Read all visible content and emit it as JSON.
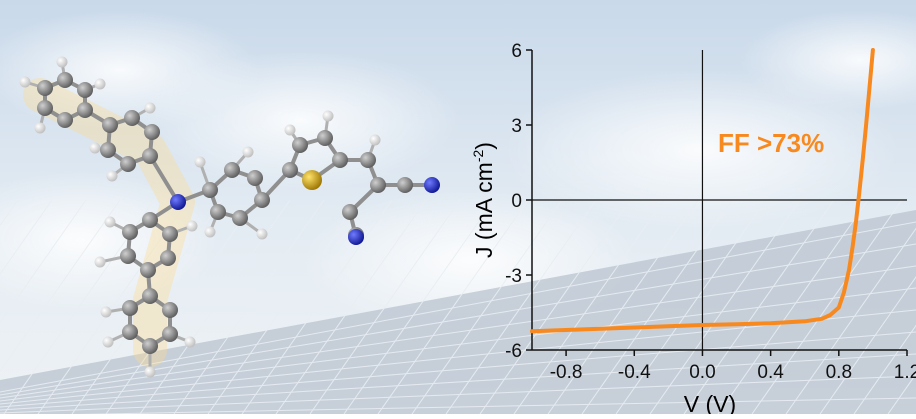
{
  "chart_data": {
    "type": "line",
    "xlabel": "V (V)",
    "ylabel_main": "J (mA cm",
    "ylabel_sup": "-2",
    "ylabel_close": ")",
    "xlim": [
      -1.0,
      1.2
    ],
    "ylim": [
      -6,
      6
    ],
    "xticks": [
      -0.8,
      -0.4,
      0.0,
      0.4,
      0.8,
      1.2
    ],
    "xtick_labels": [
      "-0.8",
      "-0.4",
      "0.0",
      "0.4",
      "0.8",
      "1.2"
    ],
    "yticks": [
      -6,
      -3,
      0,
      3,
      6
    ],
    "ytick_labels": [
      "-6",
      "-3",
      "0",
      "3",
      "6"
    ],
    "grid": false,
    "annotation": "FF >73%",
    "series": [
      {
        "color": "#f7891f",
        "x": [
          -1.0,
          -0.8,
          -0.6,
          -0.4,
          -0.2,
          0.0,
          0.2,
          0.4,
          0.6,
          0.7,
          0.75,
          0.8,
          0.83,
          0.86,
          0.88,
          0.9,
          0.92,
          0.94,
          0.96,
          0.98,
          1.0
        ],
        "y": [
          -5.25,
          -5.2,
          -5.15,
          -5.1,
          -5.05,
          -5.0,
          -4.97,
          -4.93,
          -4.85,
          -4.75,
          -4.6,
          -4.3,
          -3.7,
          -2.8,
          -1.9,
          -0.9,
          0.3,
          1.6,
          3.0,
          4.5,
          6.0
        ]
      }
    ]
  },
  "molecule": {
    "atom_colors": {
      "carbon": "#7d7d7d",
      "hydrogen": "#f2f2f2",
      "nitrogen": "#1f2bd8",
      "sulfur": "#c79a08"
    }
  },
  "colors": {
    "curve": "#f7891f",
    "annotation": "#f7891f",
    "axis": "#111111"
  }
}
